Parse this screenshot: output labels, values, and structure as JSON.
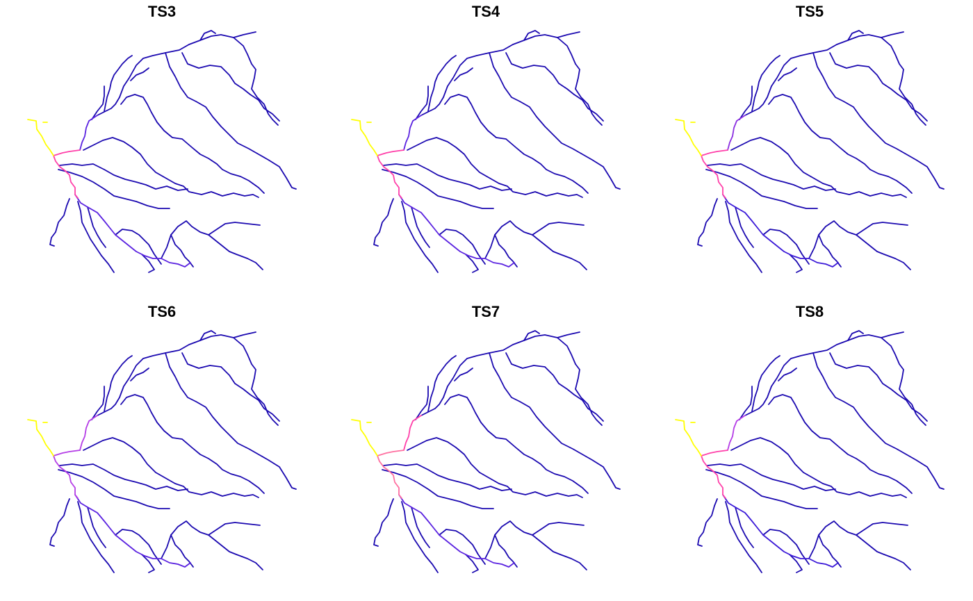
{
  "panels": [
    {
      "title": "TS3",
      "colors": {
        "source": "#ffff00",
        "mouth": "#ff3fa9",
        "near": "#b43ce6",
        "mid": "#5a22e0",
        "far": "#1a08b0",
        "north": "#5a22e0"
      }
    },
    {
      "title": "TS4",
      "colors": {
        "source": "#ffff00",
        "mouth": "#ff3fa9",
        "near": "#b43ce6",
        "mid": "#5a22e0",
        "far": "#1a08b0",
        "north": "#5a22e0"
      }
    },
    {
      "title": "TS5",
      "colors": {
        "source": "#ffff00",
        "mouth": "#ff3fa9",
        "near": "#b43ce6",
        "mid": "#3a18d8",
        "far": "#1a08b0",
        "north": "#8a2ee0"
      }
    },
    {
      "title": "TS6",
      "colors": {
        "source": "#ffff00",
        "mouth": "#b43ce6",
        "near": "#ff3fa9",
        "mid": "#5a22e0",
        "far": "#1a08b0",
        "north": "#b43ce6"
      }
    },
    {
      "title": "TS7",
      "colors": {
        "source": "#ffff00",
        "mouth": "#ff6fa0",
        "near": "#ff3fa9",
        "mid": "#5a22e0",
        "far": "#1a08b0",
        "north": "#ff3fa9"
      }
    },
    {
      "title": "TS8",
      "colors": {
        "source": "#ffff00",
        "mouth": "#ff3fa9",
        "near": "#5a22e0",
        "mid": "#3a18d8",
        "far": "#1a08b0",
        "north": "#b43ce6"
      }
    }
  ]
}
